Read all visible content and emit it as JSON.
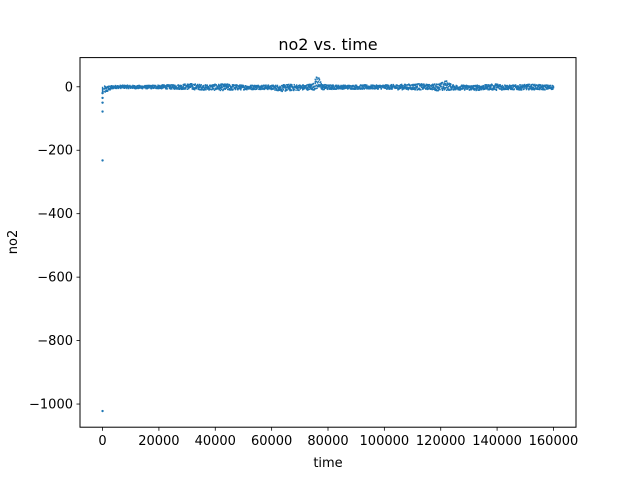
{
  "chart_data": {
    "type": "scatter",
    "title": "no2 vs. time",
    "xlabel": "time",
    "ylabel": "no2",
    "xlim": [
      -8000,
      168000
    ],
    "ylim": [
      -1073,
      92
    ],
    "xticks": [
      0,
      20000,
      40000,
      60000,
      80000,
      100000,
      120000,
      140000,
      160000
    ],
    "xtick_labels": [
      "0",
      "20000",
      "40000",
      "60000",
      "80000",
      "100000",
      "120000",
      "140000",
      "160000"
    ],
    "yticks": [
      0,
      -200,
      -400,
      -600,
      -800,
      -1000
    ],
    "ytick_labels": [
      "0",
      "−200",
      "−400",
      "−600",
      "−800",
      "−1000"
    ],
    "grid": false,
    "color": "#1f77b4",
    "series": [
      {
        "outliers": {
          "x": [
            0,
            0,
            0,
            0,
            0,
            0
          ],
          "y": [
            -1022,
            -232,
            -78,
            -50,
            -35,
            -20
          ]
        },
        "band": {
          "x": [
            500,
            4000,
            8000,
            12000,
            16000,
            20000,
            24000,
            28000,
            30000,
            32000,
            36000,
            40000,
            44000,
            48000,
            52000,
            56000,
            60000,
            64000,
            66000,
            68000,
            72000,
            75000,
            76000,
            78000,
            80000,
            84000,
            88000,
            92000,
            96000,
            100000,
            104000,
            108000,
            112000,
            116000,
            120000,
            122000,
            124000,
            128000,
            132000,
            136000,
            140000,
            144000,
            148000,
            152000,
            156000,
            160000
          ],
          "upper": [
            2,
            4,
            5,
            4,
            4,
            6,
            6,
            7,
            10,
            10,
            6,
            8,
            9,
            6,
            5,
            6,
            5,
            6,
            8,
            7,
            6,
            12,
            40,
            8,
            6,
            5,
            5,
            6,
            5,
            6,
            7,
            8,
            10,
            7,
            12,
            20,
            6,
            5,
            5,
            6,
            10,
            5,
            6,
            8,
            6,
            5
          ],
          "lower": [
            -22,
            -5,
            -5,
            -6,
            -6,
            -6,
            -7,
            -8,
            -8,
            -9,
            -10,
            -11,
            -12,
            -10,
            -9,
            -8,
            -9,
            -15,
            -13,
            -12,
            -10,
            -10,
            -8,
            -10,
            -9,
            -7,
            -7,
            -8,
            -7,
            -7,
            -9,
            -9,
            -10,
            -8,
            -14,
            -12,
            -10,
            -10,
            -12,
            -9,
            -11,
            -9,
            -10,
            -9,
            -10,
            -8
          ]
        }
      }
    ]
  }
}
